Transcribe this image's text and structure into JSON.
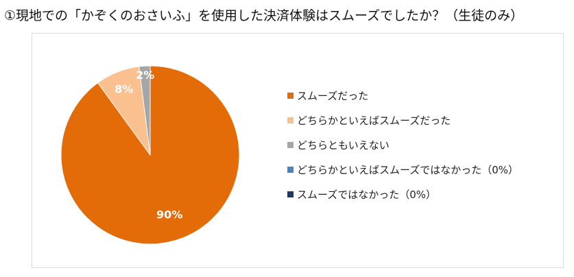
{
  "title": "①現地での「かぞくのおさいふ」を使用した決済体験はスムーズでしたか？（生徒のみ）",
  "chart_data": {
    "type": "pie",
    "categories": [
      "スムーズだった",
      "どちらかといえばスムーズだった",
      "どちらともいえない",
      "どちらかといえばスムーズではなかった（0%）",
      "スムーズではなかった（0%）"
    ],
    "values": [
      90,
      8,
      2,
      0,
      0
    ],
    "data_labels": [
      "90%",
      "8%",
      "2%",
      "",
      ""
    ],
    "colors": [
      "#E36C09",
      "#FAC090",
      "#A6A6A6",
      "#4F81BD",
      "#1F3864"
    ],
    "legend_position": "right"
  }
}
